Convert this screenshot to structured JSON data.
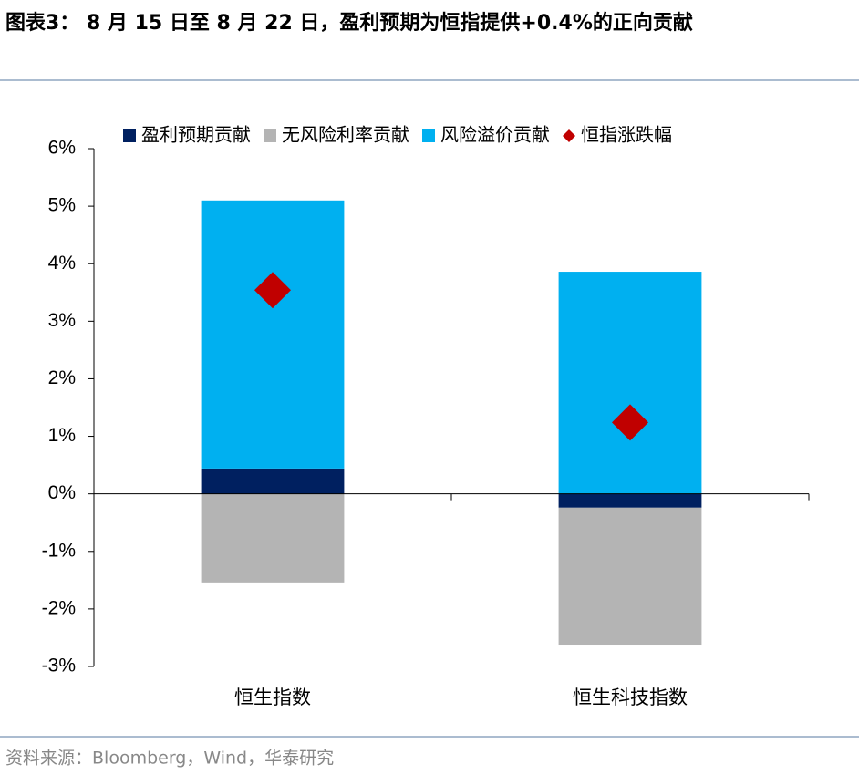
{
  "chart_data": {
    "type": "bar",
    "stacked": true,
    "title": "图表3： 8 月 15 日至 8 月 22 日，盈利预期为恒指提供+0.4%的正向贡献",
    "source": "资料来源：Bloomberg，Wind，华泰研究",
    "categories": [
      "恒生指数",
      "恒生科技指数"
    ],
    "series": [
      {
        "name": "盈利预期贡献",
        "color": "#002060",
        "values": [
          0.44,
          -0.24
        ]
      },
      {
        "name": "无风险利率贡献",
        "color": "#b4b4b4",
        "values": [
          -1.54,
          -2.38
        ]
      },
      {
        "name": "风险溢价贡献",
        "color": "#00b0f0",
        "values": [
          4.66,
          3.86
        ]
      },
      {
        "name": "恒指涨跌幅",
        "color": "#c00000",
        "type": "scatter",
        "marker": "diamond",
        "values": [
          3.54,
          1.24
        ]
      }
    ],
    "ylim": [
      -3,
      6
    ],
    "yticks": [
      {
        "value": -3,
        "label": "-3%"
      },
      {
        "value": -2,
        "label": "-2%"
      },
      {
        "value": -1,
        "label": "-1%"
      },
      {
        "value": 0,
        "label": "0%"
      },
      {
        "value": 1,
        "label": "1%"
      },
      {
        "value": 2,
        "label": "2%"
      },
      {
        "value": 3,
        "label": "3%"
      },
      {
        "value": 4,
        "label": "4%"
      },
      {
        "value": 5,
        "label": "5%"
      },
      {
        "value": 6,
        "label": "6%"
      }
    ],
    "grid": false,
    "legend": "top"
  }
}
